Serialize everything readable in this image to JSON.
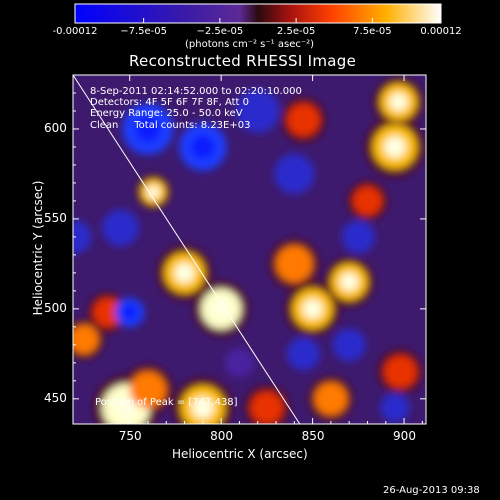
{
  "chart_data": {
    "type": "heatmap",
    "title": "Reconstructed RHESSI Image",
    "xlabel": "Heliocentric X (arcsec)",
    "ylabel": "Heliocentric Y (arcsec)",
    "xlim": [
      719,
      912
    ],
    "ylim": [
      436,
      630
    ],
    "x_ticks": [
      "750",
      "800",
      "850",
      "900"
    ],
    "x_tick_values": [
      750,
      800,
      850,
      900
    ],
    "y_ticks": [
      "450",
      "500",
      "550",
      "600"
    ],
    "y_tick_values": [
      450,
      500,
      550,
      600
    ],
    "colorbar": {
      "min": -0.00012,
      "max": 0.00012,
      "tick_labels": [
        "-0.00012",
        "−7.5e-05",
        "−2.5e-05",
        "2.5e-05",
        "7.5e-05",
        "0.00012"
      ],
      "tick_values": [
        -0.00012,
        -7.5e-05,
        -2.5e-05,
        2.5e-05,
        7.5e-05,
        0.00012
      ],
      "units_label": "(photons cm⁻² s⁻¹ asec⁻²)"
    },
    "annotations": [
      "8-Sep-2011 02:14:52.000 to 02:20:10.000",
      "Detectors: 4F 5F 6F 7F 8F, Att 0",
      "Energy Range: 25.0 - 50.0 keV",
      "Clean     Total counts: 8.23E+03"
    ],
    "peak_label": "Position of Peak = [747,438]",
    "peak_position": [
      747,
      438
    ],
    "limb_line": {
      "x1": 719,
      "y1": 630,
      "x2": 843,
      "y2": 436
    },
    "blobs": [
      {
        "x": 748,
        "y": 445,
        "v": 1.0,
        "s": 13
      },
      {
        "x": 760,
        "y": 455,
        "v": 0.6,
        "s": 10
      },
      {
        "x": 790,
        "y": 445,
        "v": 0.8,
        "s": 12
      },
      {
        "x": 800,
        "y": 500,
        "v": 0.95,
        "s": 11
      },
      {
        "x": 780,
        "y": 520,
        "v": 0.85,
        "s": 11
      },
      {
        "x": 763,
        "y": 565,
        "v": 0.8,
        "s": 7
      },
      {
        "x": 840,
        "y": 525,
        "v": 0.7,
        "s": 10
      },
      {
        "x": 850,
        "y": 500,
        "v": 0.85,
        "s": 11
      },
      {
        "x": 870,
        "y": 515,
        "v": 0.75,
        "s": 10
      },
      {
        "x": 895,
        "y": 590,
        "v": 0.8,
        "s": 12
      },
      {
        "x": 897,
        "y": 615,
        "v": 0.85,
        "s": 10
      },
      {
        "x": 845,
        "y": 605,
        "v": 0.5,
        "s": 9
      },
      {
        "x": 898,
        "y": 465,
        "v": 0.45,
        "s": 9
      },
      {
        "x": 725,
        "y": 483,
        "v": 0.7,
        "s": 8
      },
      {
        "x": 738,
        "y": 498,
        "v": 0.5,
        "s": 8
      },
      {
        "x": 825,
        "y": 445,
        "v": 0.55,
        "s": 9
      },
      {
        "x": 860,
        "y": 450,
        "v": 0.6,
        "s": 9
      },
      {
        "x": 880,
        "y": 560,
        "v": 0.45,
        "s": 8
      },
      {
        "x": 760,
        "y": 600,
        "v": -0.75,
        "s": 14
      },
      {
        "x": 790,
        "y": 590,
        "v": -0.8,
        "s": 13
      },
      {
        "x": 820,
        "y": 610,
        "v": -0.7,
        "s": 12
      },
      {
        "x": 840,
        "y": 575,
        "v": -0.65,
        "s": 11
      },
      {
        "x": 745,
        "y": 545,
        "v": -0.5,
        "s": 10
      },
      {
        "x": 750,
        "y": 498,
        "v": -0.75,
        "s": 8
      },
      {
        "x": 720,
        "y": 540,
        "v": -0.55,
        "s": 9
      },
      {
        "x": 845,
        "y": 475,
        "v": -0.7,
        "s": 9
      },
      {
        "x": 875,
        "y": 540,
        "v": -0.5,
        "s": 9
      },
      {
        "x": 895,
        "y": 445,
        "v": -0.7,
        "s": 8
      },
      {
        "x": 810,
        "y": 470,
        "v": -0.45,
        "s": 8
      },
      {
        "x": 870,
        "y": 480,
        "v": -0.55,
        "s": 9
      }
    ]
  },
  "footer": {
    "timestamp": "26-Aug-2013 09:38"
  }
}
